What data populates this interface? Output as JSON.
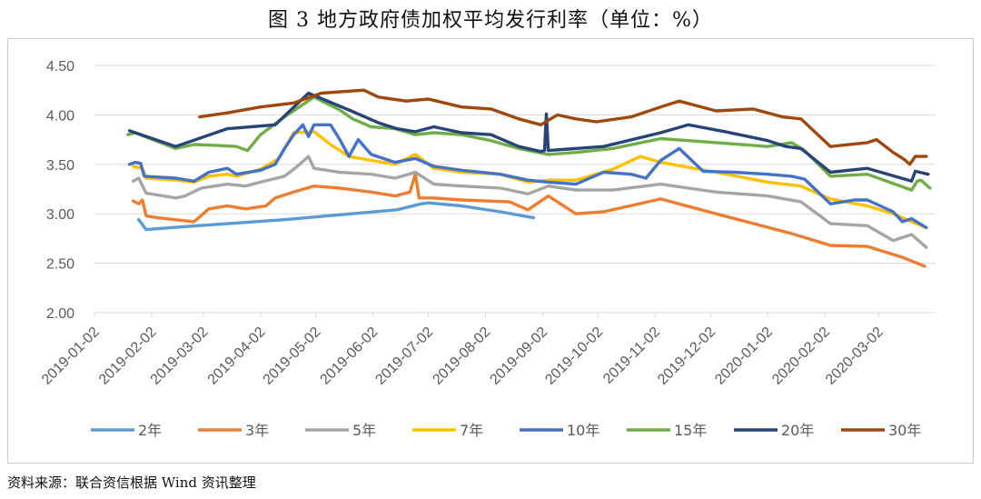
{
  "title": "图 3    地方政府债加权平均发行利率（单位：%）",
  "source": "资料来源：联合资信根据 Wind 资讯整理",
  "chart_data": {
    "type": "line",
    "title": "图 3    地方政府债加权平均发行利率（单位：%）",
    "xlabel": "",
    "ylabel": "",
    "ylim": [
      2.0,
      4.5
    ],
    "yticks": [
      "2.00",
      "2.50",
      "3.00",
      "3.50",
      "4.00",
      "4.50"
    ],
    "x_range": [
      "2019-01-02",
      "2020-04-02"
    ],
    "xticks": [
      "2019-01-02",
      "2019-02-02",
      "2019-03-02",
      "2019-04-02",
      "2019-05-02",
      "2019-06-02",
      "2019-07-02",
      "2019-08-02",
      "2019-09-02",
      "2019-10-02",
      "2019-11-02",
      "2019-12-02",
      "2020-01-02",
      "2020-02-02",
      "2020-03-02"
    ],
    "grid": true,
    "legend_position": "bottom",
    "series": [
      {
        "name": "2年",
        "color": "#5B9BD5",
        "points": [
          [
            "2019-01-26",
            2.94
          ],
          [
            "2019-01-30",
            2.84
          ],
          [
            "2019-02-20",
            2.87
          ],
          [
            "2019-03-15",
            2.9
          ],
          [
            "2019-04-15",
            2.94
          ],
          [
            "2019-05-15",
            2.99
          ],
          [
            "2019-06-15",
            3.04
          ],
          [
            "2019-06-28",
            3.1
          ],
          [
            "2019-07-02",
            3.11
          ],
          [
            "2019-07-20",
            3.08
          ],
          [
            "2019-08-10",
            3.02
          ],
          [
            "2019-08-28",
            2.96
          ]
        ]
      },
      {
        "name": "3年",
        "color": "#ED7D31",
        "points": [
          [
            "2019-01-23",
            3.13
          ],
          [
            "2019-01-26",
            3.1
          ],
          [
            "2019-01-28",
            3.14
          ],
          [
            "2019-01-30",
            2.98
          ],
          [
            "2019-02-05",
            2.96
          ],
          [
            "2019-02-25",
            2.92
          ],
          [
            "2019-03-05",
            3.05
          ],
          [
            "2019-03-15",
            3.08
          ],
          [
            "2019-03-25",
            3.05
          ],
          [
            "2019-04-05",
            3.08
          ],
          [
            "2019-04-10",
            3.16
          ],
          [
            "2019-04-20",
            3.22
          ],
          [
            "2019-05-01",
            3.28
          ],
          [
            "2019-05-15",
            3.26
          ],
          [
            "2019-06-01",
            3.22
          ],
          [
            "2019-06-14",
            3.18
          ],
          [
            "2019-06-22",
            3.22
          ],
          [
            "2019-06-25",
            3.4
          ],
          [
            "2019-06-27",
            3.16
          ],
          [
            "2019-07-05",
            3.16
          ],
          [
            "2019-07-20",
            3.14
          ],
          [
            "2019-08-15",
            3.12
          ],
          [
            "2019-08-25",
            3.04
          ],
          [
            "2019-09-05",
            3.18
          ],
          [
            "2019-09-20",
            3.0
          ],
          [
            "2019-10-05",
            3.02
          ],
          [
            "2019-11-05",
            3.15
          ],
          [
            "2019-12-05",
            3.0
          ],
          [
            "2020-01-15",
            2.8
          ],
          [
            "2020-02-05",
            2.68
          ],
          [
            "2020-02-25",
            2.67
          ],
          [
            "2020-03-15",
            2.56
          ],
          [
            "2020-03-27",
            2.47
          ]
        ]
      },
      {
        "name": "5年",
        "color": "#A5A5A5",
        "points": [
          [
            "2019-01-23",
            3.33
          ],
          [
            "2019-01-26",
            3.36
          ],
          [
            "2019-01-30",
            3.21
          ],
          [
            "2019-02-15",
            3.16
          ],
          [
            "2019-02-20",
            3.18
          ],
          [
            "2019-03-01",
            3.26
          ],
          [
            "2019-03-15",
            3.3
          ],
          [
            "2019-03-25",
            3.28
          ],
          [
            "2019-04-02",
            3.32
          ],
          [
            "2019-04-15",
            3.38
          ],
          [
            "2019-04-22",
            3.48
          ],
          [
            "2019-04-28",
            3.58
          ],
          [
            "2019-05-01",
            3.46
          ],
          [
            "2019-05-15",
            3.42
          ],
          [
            "2019-06-01",
            3.4
          ],
          [
            "2019-06-14",
            3.36
          ],
          [
            "2019-06-25",
            3.42
          ],
          [
            "2019-07-05",
            3.3
          ],
          [
            "2019-07-20",
            3.28
          ],
          [
            "2019-08-10",
            3.26
          ],
          [
            "2019-08-25",
            3.2
          ],
          [
            "2019-09-05",
            3.28
          ],
          [
            "2019-09-20",
            3.24
          ],
          [
            "2019-10-10",
            3.24
          ],
          [
            "2019-11-05",
            3.3
          ],
          [
            "2019-12-05",
            3.22
          ],
          [
            "2020-01-02",
            3.18
          ],
          [
            "2020-01-20",
            3.12
          ],
          [
            "2020-02-05",
            2.9
          ],
          [
            "2020-02-25",
            2.88
          ],
          [
            "2020-03-10",
            2.73
          ],
          [
            "2020-03-20",
            2.79
          ],
          [
            "2020-03-28",
            2.66
          ]
        ]
      },
      {
        "name": "7年",
        "color": "#FFC000",
        "points": [
          [
            "2019-01-23",
            3.48
          ],
          [
            "2019-01-28",
            3.46
          ],
          [
            "2019-01-30",
            3.36
          ],
          [
            "2019-02-15",
            3.34
          ],
          [
            "2019-02-25",
            3.32
          ],
          [
            "2019-03-05",
            3.38
          ],
          [
            "2019-03-15",
            3.4
          ],
          [
            "2019-03-20",
            3.38
          ],
          [
            "2019-04-02",
            3.45
          ],
          [
            "2019-04-12",
            3.56
          ],
          [
            "2019-04-20",
            3.82
          ],
          [
            "2019-05-01",
            3.83
          ],
          [
            "2019-05-10",
            3.7
          ],
          [
            "2019-05-20",
            3.58
          ],
          [
            "2019-06-01",
            3.54
          ],
          [
            "2019-06-14",
            3.5
          ],
          [
            "2019-06-25",
            3.6
          ],
          [
            "2019-07-05",
            3.46
          ],
          [
            "2019-07-20",
            3.42
          ],
          [
            "2019-08-10",
            3.4
          ],
          [
            "2019-08-25",
            3.32
          ],
          [
            "2019-09-05",
            3.34
          ],
          [
            "2019-09-20",
            3.34
          ],
          [
            "2019-10-10",
            3.45
          ],
          [
            "2019-10-25",
            3.58
          ],
          [
            "2019-11-05",
            3.52
          ],
          [
            "2019-12-05",
            3.42
          ],
          [
            "2020-01-02",
            3.32
          ],
          [
            "2020-01-20",
            3.28
          ],
          [
            "2020-02-05",
            3.15
          ],
          [
            "2020-02-25",
            3.08
          ],
          [
            "2020-03-10",
            3.0
          ],
          [
            "2020-03-20",
            2.92
          ],
          [
            "2020-03-28",
            2.86
          ]
        ]
      },
      {
        "name": "10年",
        "color": "#4472C4",
        "points": [
          [
            "2019-01-21",
            3.5
          ],
          [
            "2019-01-24",
            3.52
          ],
          [
            "2019-01-27",
            3.51
          ],
          [
            "2019-01-29",
            3.38
          ],
          [
            "2019-02-15",
            3.36
          ],
          [
            "2019-02-25",
            3.33
          ],
          [
            "2019-03-05",
            3.42
          ],
          [
            "2019-03-15",
            3.46
          ],
          [
            "2019-03-20",
            3.4
          ],
          [
            "2019-04-02",
            3.44
          ],
          [
            "2019-04-10",
            3.5
          ],
          [
            "2019-04-15",
            3.66
          ],
          [
            "2019-04-20",
            3.8
          ],
          [
            "2019-04-25",
            3.9
          ],
          [
            "2019-04-28",
            3.78
          ],
          [
            "2019-05-01",
            3.9
          ],
          [
            "2019-05-10",
            3.9
          ],
          [
            "2019-05-15",
            3.75
          ],
          [
            "2019-05-20",
            3.58
          ],
          [
            "2019-05-25",
            3.75
          ],
          [
            "2019-06-01",
            3.6
          ],
          [
            "2019-06-14",
            3.52
          ],
          [
            "2019-06-25",
            3.56
          ],
          [
            "2019-07-05",
            3.48
          ],
          [
            "2019-07-20",
            3.44
          ],
          [
            "2019-08-10",
            3.4
          ],
          [
            "2019-08-25",
            3.34
          ],
          [
            "2019-09-05",
            3.32
          ],
          [
            "2019-09-20",
            3.3
          ],
          [
            "2019-10-05",
            3.42
          ],
          [
            "2019-10-20",
            3.4
          ],
          [
            "2019-10-28",
            3.36
          ],
          [
            "2019-11-05",
            3.54
          ],
          [
            "2019-11-15",
            3.66
          ],
          [
            "2019-11-28",
            3.43
          ],
          [
            "2019-12-15",
            3.42
          ],
          [
            "2020-01-02",
            3.4
          ],
          [
            "2020-01-15",
            3.38
          ],
          [
            "2020-01-22",
            3.35
          ],
          [
            "2020-02-05",
            3.1
          ],
          [
            "2020-02-18",
            3.14
          ],
          [
            "2020-02-25",
            3.14
          ],
          [
            "2020-03-10",
            3.02
          ],
          [
            "2020-03-15",
            2.92
          ],
          [
            "2020-03-20",
            2.95
          ],
          [
            "2020-03-28",
            2.86
          ]
        ]
      },
      {
        "name": "15年",
        "color": "#70AD47",
        "points": [
          [
            "2019-01-20",
            3.8
          ],
          [
            "2019-01-24",
            3.82
          ],
          [
            "2019-02-15",
            3.66
          ],
          [
            "2019-02-25",
            3.7
          ],
          [
            "2019-03-10",
            3.69
          ],
          [
            "2019-03-20",
            3.68
          ],
          [
            "2019-03-26",
            3.64
          ],
          [
            "2019-04-02",
            3.8
          ],
          [
            "2019-04-15",
            3.98
          ],
          [
            "2019-05-01",
            4.18
          ],
          [
            "2019-05-15",
            4.05
          ],
          [
            "2019-05-22",
            3.96
          ],
          [
            "2019-06-01",
            3.88
          ],
          [
            "2019-06-14",
            3.86
          ],
          [
            "2019-06-25",
            3.8
          ],
          [
            "2019-07-05",
            3.82
          ],
          [
            "2019-07-20",
            3.8
          ],
          [
            "2019-08-05",
            3.74
          ],
          [
            "2019-08-20",
            3.66
          ],
          [
            "2019-09-05",
            3.6
          ],
          [
            "2019-09-20",
            3.62
          ],
          [
            "2019-10-10",
            3.66
          ],
          [
            "2019-11-05",
            3.76
          ],
          [
            "2019-12-05",
            3.72
          ],
          [
            "2020-01-02",
            3.68
          ],
          [
            "2020-01-15",
            3.72
          ],
          [
            "2020-01-22",
            3.64
          ],
          [
            "2020-02-05",
            3.38
          ],
          [
            "2020-02-25",
            3.4
          ],
          [
            "2020-03-20",
            3.24
          ],
          [
            "2020-03-23",
            3.33
          ],
          [
            "2020-03-25",
            3.34
          ],
          [
            "2020-03-30",
            3.26
          ]
        ]
      },
      {
        "name": "20年",
        "color": "#264478",
        "points": [
          [
            "2019-01-21",
            3.84
          ],
          [
            "2019-02-15",
            3.68
          ],
          [
            "2019-03-15",
            3.86
          ],
          [
            "2019-04-10",
            3.9
          ],
          [
            "2019-04-28",
            4.22
          ],
          [
            "2019-05-20",
            4.05
          ],
          [
            "2019-06-05",
            3.92
          ],
          [
            "2019-06-15",
            3.86
          ],
          [
            "2019-06-25",
            3.83
          ],
          [
            "2019-07-05",
            3.88
          ],
          [
            "2019-07-20",
            3.82
          ],
          [
            "2019-08-05",
            3.8
          ],
          [
            "2019-08-20",
            3.68
          ],
          [
            "2019-09-01",
            3.63
          ],
          [
            "2019-09-03",
            3.64
          ],
          [
            "2019-09-04",
            4.01
          ],
          [
            "2019-09-05",
            3.64
          ],
          [
            "2019-10-05",
            3.68
          ],
          [
            "2019-11-05",
            3.82
          ],
          [
            "2019-11-20",
            3.9
          ],
          [
            "2019-12-10",
            3.83
          ],
          [
            "2020-01-02",
            3.74
          ],
          [
            "2020-01-12",
            3.68
          ],
          [
            "2020-01-20",
            3.66
          ],
          [
            "2020-02-05",
            3.42
          ],
          [
            "2020-02-25",
            3.46
          ],
          [
            "2020-03-20",
            3.33
          ],
          [
            "2020-03-22",
            3.43
          ],
          [
            "2020-03-29",
            3.4
          ]
        ]
      },
      {
        "name": "30年",
        "color": "#9E480E",
        "points": [
          [
            "2019-02-28",
            3.98
          ],
          [
            "2019-03-15",
            4.02
          ],
          [
            "2019-04-02",
            4.08
          ],
          [
            "2019-04-20",
            4.12
          ],
          [
            "2019-05-05",
            4.22
          ],
          [
            "2019-05-20",
            4.24
          ],
          [
            "2019-05-28",
            4.25
          ],
          [
            "2019-06-05",
            4.18
          ],
          [
            "2019-06-20",
            4.14
          ],
          [
            "2019-07-02",
            4.16
          ],
          [
            "2019-07-20",
            4.08
          ],
          [
            "2019-08-05",
            4.06
          ],
          [
            "2019-08-20",
            3.96
          ],
          [
            "2019-09-01",
            3.9
          ],
          [
            "2019-09-10",
            4.0
          ],
          [
            "2019-09-20",
            3.96
          ],
          [
            "2019-10-01",
            3.93
          ],
          [
            "2019-10-20",
            3.98
          ],
          [
            "2019-11-05",
            4.08
          ],
          [
            "2019-11-15",
            4.14
          ],
          [
            "2019-12-05",
            4.04
          ],
          [
            "2019-12-25",
            4.06
          ],
          [
            "2020-01-10",
            3.98
          ],
          [
            "2020-01-20",
            3.96
          ],
          [
            "2020-02-05",
            3.68
          ],
          [
            "2020-02-25",
            3.72
          ],
          [
            "2020-03-01",
            3.75
          ],
          [
            "2020-03-10",
            3.62
          ],
          [
            "2020-03-16",
            3.55
          ],
          [
            "2020-03-19",
            3.5
          ],
          [
            "2020-03-22",
            3.58
          ],
          [
            "2020-03-28",
            3.58
          ]
        ]
      }
    ]
  }
}
